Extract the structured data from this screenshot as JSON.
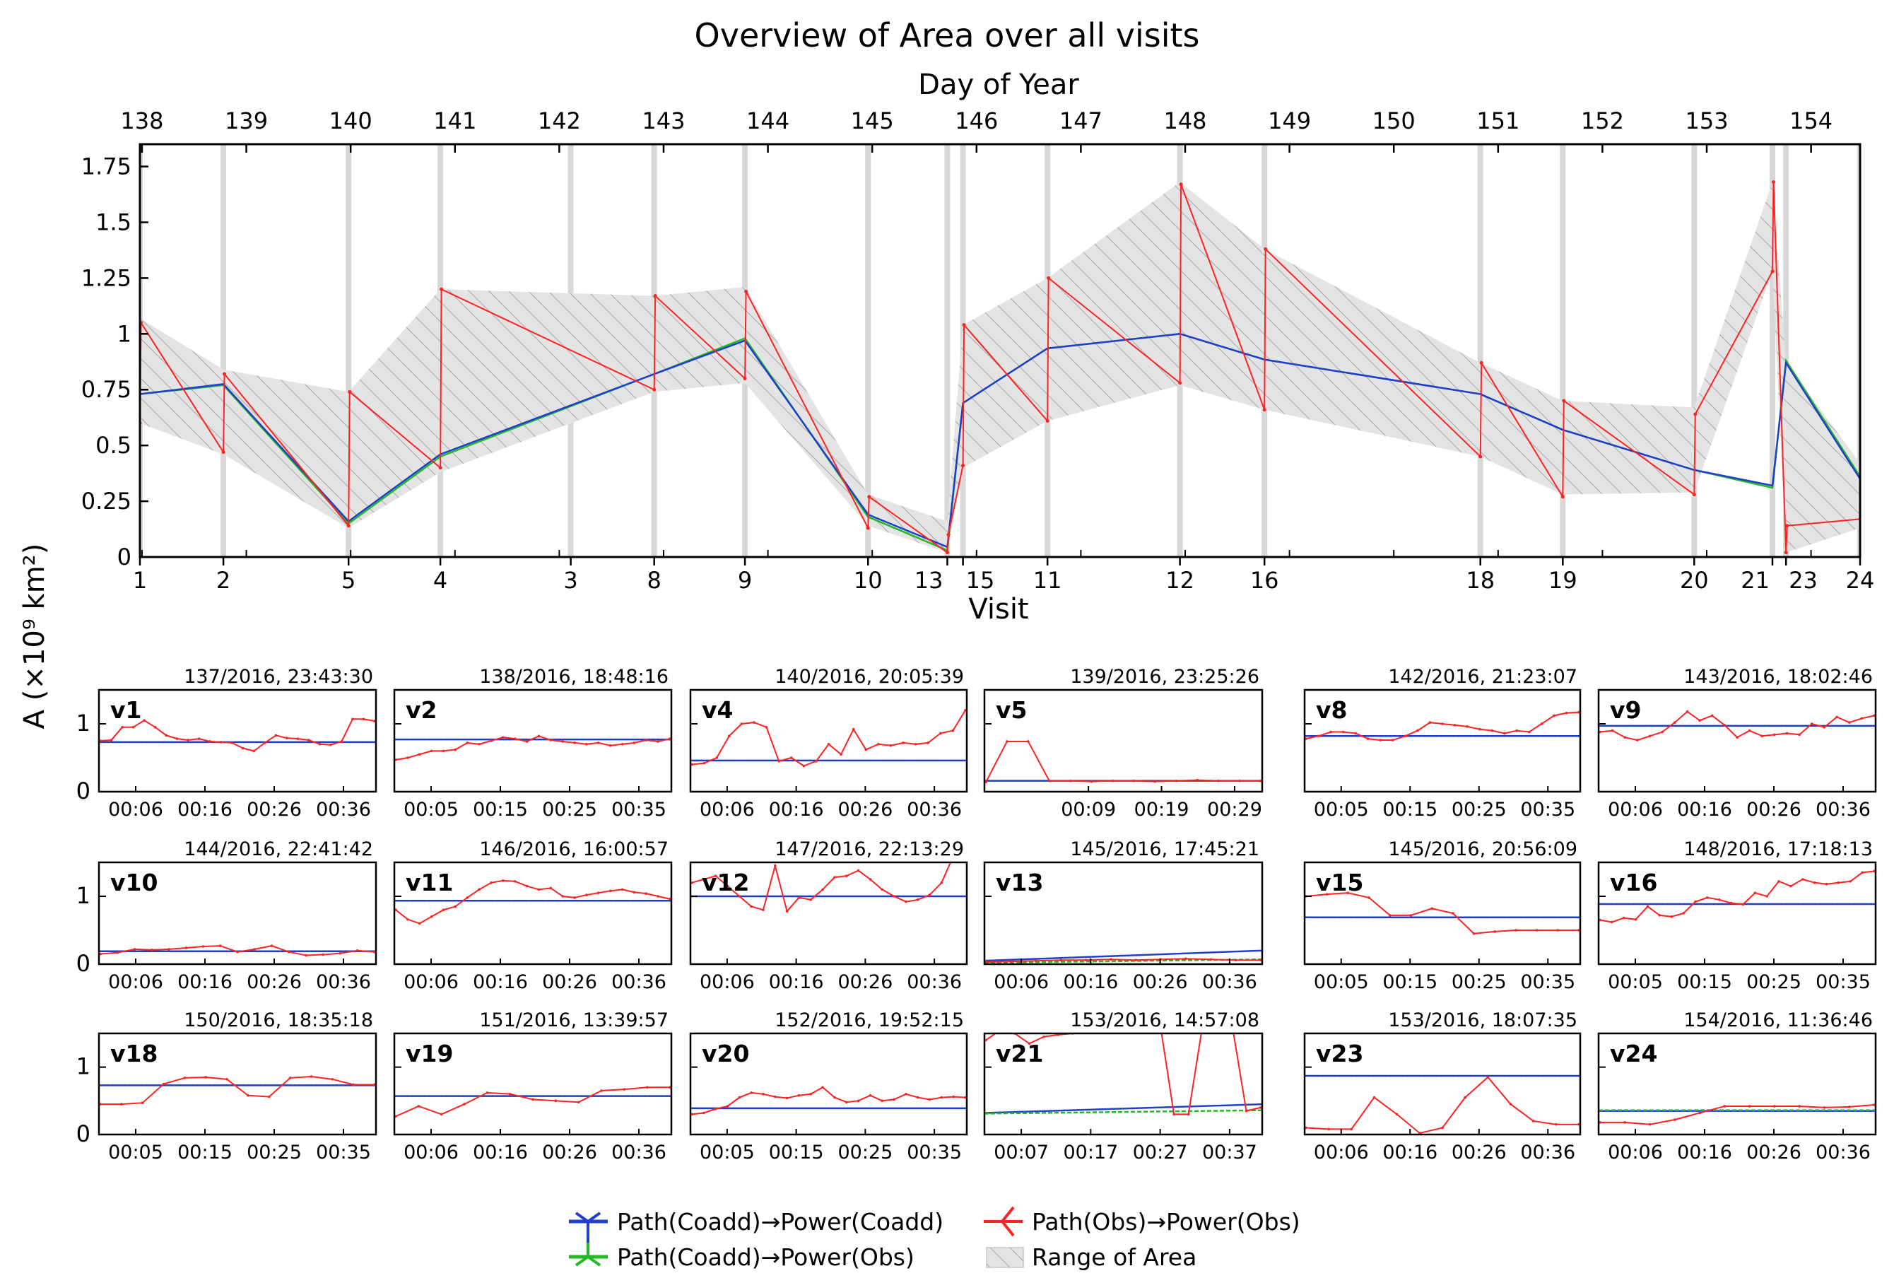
{
  "title": "Overview of Area over all visits",
  "top_axis_label": "Day of Year",
  "bottom_axis_label": "Visit",
  "y_axis_label": "A (×10⁹ km²)",
  "legend": {
    "coadd_coadd": "Path(Coadd)→Power(Coadd)",
    "coadd_obs": "Path(Coadd)→Power(Obs)",
    "obs_obs": "Path(Obs)→Power(Obs)",
    "range": "Range of Area"
  },
  "colors": {
    "coadd_coadd": "#1f3fcc",
    "coadd_obs": "#22bb22",
    "obs_obs": "#ff2222",
    "range_fill": "#e4e4e4",
    "range_hatch": "#b8b8b8",
    "band": "#d8d8d8"
  },
  "chart_data": [
    {
      "type": "line",
      "title": "Overview of Area over all visits",
      "xlabel": "Visit",
      "x2label": "Day of Year",
      "ylabel": "A (×10⁹ km²)",
      "ylim": [
        0,
        1.85
      ],
      "yticks": [
        0,
        0.25,
        0.5,
        0.75,
        1,
        1.25,
        1.5,
        1.75
      ],
      "ytick_labels": [
        "0",
        "0.25",
        "0.5",
        "0.75",
        "1",
        "1.25",
        "1.5",
        "1.75"
      ],
      "xlim_doy": [
        137.98,
        154.47
      ],
      "doy_ticks": [
        138,
        139,
        140,
        141,
        142,
        143,
        144,
        145,
        146,
        147,
        148,
        149,
        150,
        151,
        152,
        153,
        154
      ],
      "visit_ticks": [
        {
          "label": "1",
          "doy": 137.98
        },
        {
          "label": "2",
          "doy": 138.78
        },
        {
          "label": "5",
          "doy": 139.98
        },
        {
          "label": "4",
          "doy": 140.86
        },
        {
          "label": "3",
          "doy": 142.11
        },
        {
          "label": "8",
          "doy": 142.91
        },
        {
          "label": "9",
          "doy": 143.78
        },
        {
          "label": "10",
          "doy": 144.96
        },
        {
          "label": "13",
          "doy": 145.72
        },
        {
          "label": "15",
          "doy": 145.87
        },
        {
          "label": "11",
          "doy": 146.68
        },
        {
          "label": "12",
          "doy": 147.95
        },
        {
          "label": "16",
          "doy": 148.76
        },
        {
          "label": "18",
          "doy": 150.83
        },
        {
          "label": "19",
          "doy": 151.62
        },
        {
          "label": "20",
          "doy": 152.88
        },
        {
          "label": "21",
          "doy": 153.63
        },
        {
          "label": "23",
          "doy": 153.76
        },
        {
          "label": "24",
          "doy": 154.47
        }
      ],
      "visit_bands": [
        137.98,
        138.78,
        139.98,
        140.86,
        142.11,
        142.91,
        143.78,
        144.96,
        145.72,
        145.87,
        146.68,
        147.95,
        148.76,
        150.83,
        151.62,
        152.88,
        153.63,
        153.76,
        154.47
      ],
      "series": [
        {
          "name": "Path(Coadd)→Power(Coadd)",
          "x": [
            137.98,
            138.78,
            139.98,
            140.86,
            142.91,
            143.78,
            144.96,
            145.72,
            145.87,
            146.68,
            147.95,
            148.76,
            150.83,
            151.62,
            152.88,
            153.63,
            153.76,
            154.47
          ],
          "y": [
            0.73,
            0.775,
            0.16,
            0.46,
            0.82,
            0.97,
            0.19,
            0.045,
            0.69,
            0.935,
            1.0,
            0.885,
            0.73,
            0.57,
            0.39,
            0.32,
            0.87,
            0.35
          ]
        },
        {
          "name": "Path(Coadd)→Power(Obs)",
          "x": [
            137.98,
            138.78,
            139.98,
            140.86,
            142.91,
            143.78,
            144.96,
            145.72,
            145.87,
            146.68,
            147.95,
            148.76,
            150.83,
            151.62,
            152.88,
            153.63,
            153.76,
            154.47
          ],
          "y": [
            0.73,
            0.77,
            0.15,
            0.45,
            0.82,
            0.98,
            0.18,
            0.03,
            0.69,
            0.935,
            1.0,
            0.885,
            0.73,
            0.57,
            0.39,
            0.31,
            0.88,
            0.36
          ]
        },
        {
          "name": "Path(Obs)→Power(Obs)",
          "x": [
            137.98,
            137.99,
            138.78,
            138.79,
            139.98,
            139.99,
            140.86,
            140.87,
            142.91,
            142.92,
            143.78,
            143.79,
            144.96,
            144.97,
            145.72,
            145.73,
            145.87,
            145.88,
            146.68,
            146.69,
            147.95,
            147.96,
            148.76,
            148.77,
            150.83,
            150.84,
            151.62,
            151.63,
            152.88,
            152.89,
            153.63,
            153.64,
            153.76,
            153.77,
            154.47
          ],
          "y": [
            0.6,
            1.05,
            0.47,
            0.82,
            0.14,
            0.74,
            0.4,
            1.2,
            0.75,
            1.17,
            0.8,
            1.19,
            0.13,
            0.27,
            0.02,
            0.1,
            0.41,
            1.04,
            0.61,
            1.25,
            0.78,
            1.67,
            0.66,
            1.38,
            0.45,
            0.87,
            0.27,
            0.7,
            0.28,
            0.64,
            1.28,
            1.68,
            0.02,
            0.14,
            0.17
          ]
        }
      ],
      "range_of_area": {
        "x": [
          137.98,
          138.78,
          139.98,
          140.86,
          142.91,
          143.78,
          144.96,
          145.72,
          145.87,
          146.68,
          147.95,
          148.76,
          150.83,
          151.62,
          152.88,
          153.63,
          153.76,
          154.47
        ],
        "low": [
          0.6,
          0.46,
          0.13,
          0.38,
          0.74,
          0.78,
          0.14,
          0.02,
          0.4,
          0.61,
          0.77,
          0.66,
          0.45,
          0.28,
          0.29,
          1.28,
          0.02,
          0.13
        ],
        "high": [
          1.07,
          0.84,
          0.74,
          1.2,
          1.17,
          1.21,
          0.28,
          0.16,
          1.04,
          1.25,
          1.68,
          1.38,
          0.87,
          0.7,
          0.67,
          1.68,
          0.87,
          0.42
        ]
      }
    },
    {
      "type": "line",
      "label": "v1",
      "date": "137/2016, 23:43:30",
      "ylim": [
        0,
        1.5
      ],
      "yticks": [
        0,
        1
      ],
      "xticks": [
        "00:06",
        "00:16",
        "00:26",
        "00:36"
      ],
      "coadd": [
        0.73,
        0.73
      ],
      "obs": [
        0.75,
        0.76,
        0.95,
        0.95,
        1.05,
        0.95,
        0.83,
        0.78,
        0.76,
        0.78,
        0.74,
        0.73,
        0.72,
        0.64,
        0.6,
        0.72,
        0.83,
        0.79,
        0.78,
        0.76,
        0.7,
        0.69,
        0.74,
        1.07,
        1.07,
        1.04
      ]
    },
    {
      "type": "line",
      "label": "v2",
      "date": "138/2016, 18:48:16",
      "ylim": [
        0,
        1.5
      ],
      "yticks": [
        0,
        1
      ],
      "xticks": [
        "00:05",
        "00:15",
        "00:25",
        "00:35"
      ],
      "coadd": [
        0.77,
        0.77
      ],
      "obs": [
        0.47,
        0.5,
        0.55,
        0.6,
        0.6,
        0.62,
        0.72,
        0.7,
        0.75,
        0.8,
        0.78,
        0.74,
        0.82,
        0.76,
        0.74,
        0.72,
        0.7,
        0.72,
        0.68,
        0.7,
        0.72,
        0.76,
        0.74,
        0.78
      ]
    },
    {
      "type": "line",
      "label": "v4",
      "date": "140/2016, 20:05:39",
      "ylim": [
        0,
        1.5
      ],
      "yticks": [
        0,
        1
      ],
      "xticks": [
        "00:06",
        "00:16",
        "00:26",
        "00:36"
      ],
      "coadd": [
        0.46,
        0.46
      ],
      "obs": [
        0.4,
        0.42,
        0.5,
        0.82,
        1.0,
        1.02,
        0.95,
        0.45,
        0.5,
        0.38,
        0.45,
        0.7,
        0.55,
        0.92,
        0.62,
        0.7,
        0.68,
        0.72,
        0.7,
        0.72,
        0.86,
        0.9,
        1.2
      ]
    },
    {
      "type": "line",
      "label": "v5",
      "date": "139/2016, 23:25:26",
      "ylim": [
        0,
        1.5
      ],
      "yticks": [
        0,
        1
      ],
      "xticks": [
        "00:09",
        "00:19",
        "00:29"
      ],
      "coadd": [
        0.16,
        0.16
      ],
      "obs": [
        0.14,
        0.74,
        0.74,
        0.16,
        0.16,
        0.15,
        0.16,
        0.16,
        0.15,
        0.16,
        0.17,
        0.16,
        0.16,
        0.16
      ]
    },
    {
      "type": "line",
      "label": "v8",
      "date": "142/2016, 21:23:07",
      "ylim": [
        0,
        1.5
      ],
      "yticks": [
        0,
        1
      ],
      "xticks": [
        "00:05",
        "00:15",
        "00:25",
        "00:35"
      ],
      "coadd": [
        0.82,
        0.82
      ],
      "obs": [
        0.78,
        0.82,
        0.88,
        0.88,
        0.86,
        0.78,
        0.76,
        0.76,
        0.82,
        0.9,
        1.02,
        1.0,
        0.98,
        0.96,
        0.92,
        0.9,
        0.86,
        0.9,
        0.88,
        1.0,
        1.12,
        1.16,
        1.17
      ]
    },
    {
      "type": "line",
      "label": "v9",
      "date": "143/2016, 18:02:46",
      "ylim": [
        0,
        1.5
      ],
      "yticks": [
        0,
        1
      ],
      "xticks": [
        "00:06",
        "00:16",
        "00:26",
        "00:36"
      ],
      "coadd": [
        0.97,
        0.97
      ],
      "obs": [
        0.88,
        0.9,
        0.8,
        0.76,
        0.82,
        0.88,
        1.02,
        1.18,
        1.05,
        1.12,
        0.98,
        0.8,
        0.9,
        0.82,
        0.84,
        0.86,
        0.84,
        1.0,
        0.95,
        1.1,
        1.02,
        1.08,
        1.12
      ]
    },
    {
      "type": "line",
      "label": "v10",
      "date": "144/2016, 22:41:42",
      "ylim": [
        0,
        1.5
      ],
      "yticks": [
        0,
        1
      ],
      "xticks": [
        "00:06",
        "00:16",
        "00:26",
        "00:36"
      ],
      "coadd": [
        0.19,
        0.19
      ],
      "obs": [
        0.15,
        0.17,
        0.22,
        0.21,
        0.22,
        0.24,
        0.26,
        0.27,
        0.18,
        0.22,
        0.27,
        0.18,
        0.13,
        0.14,
        0.16,
        0.2,
        0.18
      ]
    },
    {
      "type": "line",
      "label": "v11",
      "date": "146/2016, 16:00:57",
      "ylim": [
        0,
        1.5
      ],
      "yticks": [
        0,
        1
      ],
      "xticks": [
        "00:06",
        "00:16",
        "00:26",
        "00:36"
      ],
      "coadd": [
        0.935,
        0.935
      ],
      "obs": [
        0.8,
        0.66,
        0.6,
        0.7,
        0.8,
        0.85,
        0.98,
        1.1,
        1.2,
        1.23,
        1.22,
        1.15,
        1.1,
        1.12,
        1.0,
        0.98,
        1.02,
        1.05,
        1.08,
        1.1,
        1.06,
        1.04,
        1.0,
        0.96
      ]
    },
    {
      "type": "line",
      "label": "v12",
      "date": "147/2016, 22:13:29",
      "ylim": [
        0,
        1.5
      ],
      "yticks": [
        0,
        1
      ],
      "xticks": [
        "00:06",
        "00:16",
        "00:26",
        "00:36"
      ],
      "coadd": [
        1.0,
        1.0
      ],
      "obs": [
        1.2,
        1.25,
        1.3,
        1.15,
        1.0,
        0.85,
        0.8,
        1.45,
        0.78,
        0.98,
        0.95,
        1.1,
        1.28,
        1.3,
        1.38,
        1.25,
        1.1,
        1.0,
        0.92,
        0.95,
        1.02,
        1.2,
        1.6,
        1.65
      ]
    },
    {
      "type": "line",
      "label": "v13",
      "date": "145/2016, 17:45:21",
      "ylim": [
        0,
        1.5
      ],
      "yticks": [
        0,
        1
      ],
      "xticks": [
        "00:06",
        "00:16",
        "00:26",
        "00:36"
      ],
      "coadd": [
        0.05,
        0.2
      ],
      "coadd_obs": [
        0.02,
        0.07
      ],
      "obs": [
        0.03,
        0.04,
        0.05,
        0.06,
        0.06,
        0.07,
        0.06,
        0.07,
        0.08,
        0.07,
        0.06,
        0.06
      ]
    },
    {
      "type": "line",
      "label": "v15",
      "date": "145/2016, 20:56:09",
      "ylim": [
        0,
        1.5
      ],
      "yticks": [
        0,
        1
      ],
      "xticks": [
        "00:05",
        "00:15",
        "00:25",
        "00:35"
      ],
      "coadd": [
        0.69,
        0.69
      ],
      "obs": [
        1.0,
        1.03,
        1.05,
        0.98,
        0.72,
        0.72,
        0.82,
        0.75,
        0.45,
        0.48,
        0.5,
        0.5,
        0.5,
        0.5
      ]
    },
    {
      "type": "line",
      "label": "v16",
      "date": "148/2016, 17:18:13",
      "ylim": [
        0,
        1.5
      ],
      "yticks": [
        0,
        1
      ],
      "xticks": [
        "00:05",
        "00:15",
        "00:25",
        "00:35"
      ],
      "coadd": [
        0.885,
        0.885
      ],
      "obs": [
        0.65,
        0.62,
        0.68,
        0.66,
        0.85,
        0.72,
        0.7,
        0.75,
        0.92,
        0.98,
        0.95,
        0.9,
        0.88,
        1.05,
        1.0,
        1.22,
        1.15,
        1.25,
        1.2,
        1.18,
        1.2,
        1.22,
        1.35,
        1.37
      ]
    },
    {
      "type": "line",
      "label": "v18",
      "date": "150/2016, 18:35:18",
      "ylim": [
        0,
        1.5
      ],
      "yticks": [
        0,
        1
      ],
      "xticks": [
        "00:05",
        "00:15",
        "00:25",
        "00:35"
      ],
      "coadd": [
        0.73,
        0.73
      ],
      "obs": [
        0.45,
        0.45,
        0.47,
        0.75,
        0.84,
        0.85,
        0.82,
        0.58,
        0.56,
        0.84,
        0.86,
        0.82,
        0.74,
        0.74
      ]
    },
    {
      "type": "line",
      "label": "v19",
      "date": "151/2016, 13:39:57",
      "ylim": [
        0,
        1.5
      ],
      "yticks": [
        0,
        1
      ],
      "xticks": [
        "00:06",
        "00:16",
        "00:26",
        "00:36"
      ],
      "coadd": [
        0.57,
        0.57
      ],
      "obs": [
        0.27,
        0.42,
        0.3,
        0.45,
        0.62,
        0.6,
        0.52,
        0.5,
        0.48,
        0.65,
        0.67,
        0.7,
        0.7
      ]
    },
    {
      "type": "line",
      "label": "v20",
      "date": "152/2016, 19:52:15",
      "ylim": [
        0,
        1.5
      ],
      "yticks": [
        0,
        1
      ],
      "xticks": [
        "00:05",
        "00:15",
        "00:25",
        "00:35"
      ],
      "coadd": [
        0.39,
        0.39
      ],
      "obs": [
        0.3,
        0.32,
        0.38,
        0.42,
        0.55,
        0.62,
        0.6,
        0.56,
        0.54,
        0.58,
        0.6,
        0.7,
        0.55,
        0.48,
        0.5,
        0.58,
        0.5,
        0.52,
        0.6,
        0.55,
        0.52,
        0.55,
        0.56,
        0.55
      ]
    },
    {
      "type": "line",
      "label": "v21",
      "date": "153/2016, 14:57:08",
      "ylim": [
        0,
        1.5
      ],
      "yticks": [
        0,
        1
      ],
      "xticks": [
        "00:07",
        "00:17",
        "00:27",
        "00:37"
      ],
      "coadd": [
        0.32,
        0.45
      ],
      "coadd_obs": [
        0.31,
        0.36
      ],
      "obs": [
        1.4,
        1.55,
        1.5,
        1.35,
        1.45,
        1.48,
        1.5,
        1.55,
        1.62,
        1.7,
        1.65,
        1.6,
        1.7,
        0.3,
        0.3,
        1.65,
        1.6,
        1.65,
        0.35,
        0.4
      ]
    },
    {
      "type": "line",
      "label": "v23",
      "date": "153/2016, 18:07:35",
      "ylim": [
        0,
        1.5
      ],
      "yticks": [
        0,
        1
      ],
      "xticks": [
        "00:06",
        "00:16",
        "00:26",
        "00:36"
      ],
      "coadd": [
        0.87,
        0.87
      ],
      "obs": [
        0.1,
        0.08,
        0.08,
        0.55,
        0.3,
        0.02,
        0.1,
        0.55,
        0.85,
        0.45,
        0.2,
        0.15,
        0.15
      ]
    },
    {
      "type": "line",
      "label": "v24",
      "date": "154/2016, 11:36:46",
      "ylim": [
        0,
        1.5
      ],
      "yticks": [
        0,
        1
      ],
      "xticks": [
        "00:06",
        "00:16",
        "00:26",
        "00:36"
      ],
      "coadd": [
        0.35,
        0.35
      ],
      "coadd_obs": [
        0.36,
        0.36
      ],
      "obs": [
        0.18,
        0.18,
        0.15,
        0.22,
        0.32,
        0.42,
        0.42,
        0.42,
        0.42,
        0.4,
        0.41,
        0.44
      ]
    }
  ]
}
